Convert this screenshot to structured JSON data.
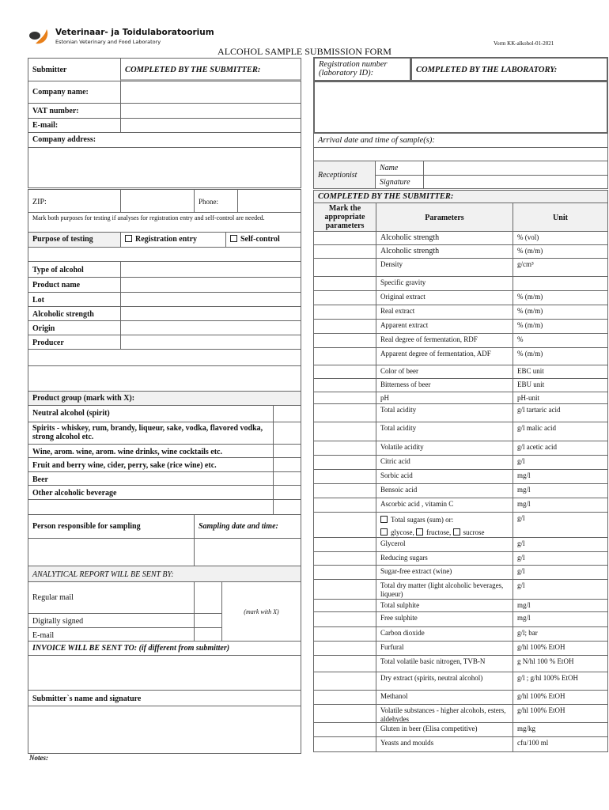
{
  "header": {
    "org_name": "Veterinaar- ja Toidulaboratoorium",
    "org_sub": "Estonian Veterinary and Food Laboratory",
    "form_code": "Vorm KK-alkohol-01-2021",
    "title": "ALCOHOL SAMPLE SUBMISSION FORM",
    "brand_color": "#e8801a"
  },
  "left": {
    "submitter": "Submitter",
    "completed_submitter": "COMPLETED BY THE SUBMITTER:",
    "company_name": "Company name:",
    "vat": "VAT number:",
    "email": "E-mail:",
    "address": "Company address:",
    "zip": "ZIP:",
    "phone": "Phone:",
    "note": "Mark both purposes for testing if analyses for registration entry and self-control are needed.",
    "purpose": "Purpose of testing",
    "registration_entry": "Registration entry",
    "self_control": "Self-control",
    "type_of_alcohol": "Type of alcohol",
    "product_name": "Product name",
    "lot": "Lot",
    "alcoholic_strength": "Alcoholic strength",
    "origin": "Origin",
    "producer": "Producer",
    "product_group": "Product group (mark with X):",
    "groups": [
      "Neutral alcohol (spirit)",
      "Spirits - whiskey, rum, brandy, liqueur, sake, vodka, flavored vodka, strong alcohol etc.",
      "Wine, arom. wine, arom. wine drinks, wine cocktails etc.",
      "Fruit and berry wine, cider, perry, sake (rice wine) etc.",
      "Beer",
      "Other alcoholic beverage"
    ],
    "person_sampling": "Person responsible for sampling",
    "sampling_date": "Sampling date and time:",
    "report_sent_by": "ANALYTICAL REPORT WILL BE SENT BY:",
    "regular_mail": "Regular mail",
    "digitally_signed": "Digitally signed",
    "report_email": "E-mail",
    "mark_with_x": "(mark with X)",
    "invoice": "INVOICE WILL BE SENT TO: (if different from submitter)",
    "signature": "Submitter`s name and signature",
    "notes": "Notes:"
  },
  "right": {
    "registration_number": "Registration number (laboratory ID):",
    "completed_lab": "COMPLETED BY THE LABORATORY:",
    "arrival": "Arrival date and time of sample(s):",
    "receptionist": "Receptionist",
    "name": "Name",
    "signature": "Signature",
    "completed_submitter": "COMPLETED BY THE SUBMITTER:",
    "col_mark": "Mark the appropriate parameters",
    "col_params": "Parameters",
    "col_unit": "Unit",
    "sugars_line1": "Total sugars (sum) or:",
    "glycose": "glycose,",
    "fructose": "fructose,",
    "sucrose": "sucrose",
    "params": [
      {
        "name": "Alcoholic strength",
        "unit": "% (vol)"
      },
      {
        "name": "Alcoholic strength",
        "unit": "% (m/m)"
      },
      {
        "name": "Density",
        "unit": "g/cm³"
      },
      {
        "name": "Specific gravity",
        "unit": ""
      },
      {
        "name": "Original extract",
        "unit": "% (m/m)"
      },
      {
        "name": "Real extract",
        "unit": "% (m/m)"
      },
      {
        "name": "Apparent extract",
        "unit": "% (m/m)"
      },
      {
        "name": "Real degree of fermentation, RDF",
        "unit": "%"
      },
      {
        "name": "Apparent degree of fermentation, ADF",
        "unit": "% (m/m)"
      },
      {
        "name": "Color of beer",
        "unit": "EBC unit"
      },
      {
        "name": "Bitterness of beer",
        "unit": "EBU unit"
      },
      {
        "name": "pH",
        "unit": "pH-unit"
      },
      {
        "name": "Total acidity",
        "unit": "g/l tartaric acid"
      },
      {
        "name": "Total acidity",
        "unit": "g/l malic acid"
      },
      {
        "name": "Volatile acidity",
        "unit": "g/l acetic acid"
      },
      {
        "name": "Citric acid",
        "unit": "g/l"
      },
      {
        "name": "Sorbic acid",
        "unit": "mg/l"
      },
      {
        "name": "Bensoic acid",
        "unit": "mg/l"
      },
      {
        "name": "Ascorbic acid , vitamin C",
        "unit": "mg/l"
      },
      {
        "name": "",
        "unit": "g/l"
      },
      {
        "name": "Glycerol",
        "unit": "g/l"
      },
      {
        "name": "Reducing sugars",
        "unit": "g/l"
      },
      {
        "name": "Sugar-free extract (wine)",
        "unit": "g/l"
      },
      {
        "name": "Total dry matter (light alcoholic beverages, liqueur)",
        "unit": "g/l"
      },
      {
        "name": "Total sulphite",
        "unit": "mg/l"
      },
      {
        "name": "Free sulphite",
        "unit": "mg/l"
      },
      {
        "name": "Carbon dioxide",
        "unit": "g/l; bar"
      },
      {
        "name": "Furfural",
        "unit": "g/hl 100% EtOH"
      },
      {
        "name": "Total volatile basic nitrogen, TVB-N",
        "unit": "g N/hl 100 % EtOH"
      },
      {
        "name": "Dry extract (spirits, neutral alcohol)",
        "unit": "g/l ; g/hl 100% EtOH"
      },
      {
        "name": "Methanol",
        "unit": "g/hl 100% EtOH"
      },
      {
        "name": "Volatile substances - higher alcohols, esters, aldehydes",
        "unit": "g/hl 100% EtOH"
      },
      {
        "name": "Gluten in beer (Elisa competitive)",
        "unit": "mg/kg"
      },
      {
        "name": "Yeasts and moulds",
        "unit": "cfu/100 ml"
      }
    ]
  }
}
